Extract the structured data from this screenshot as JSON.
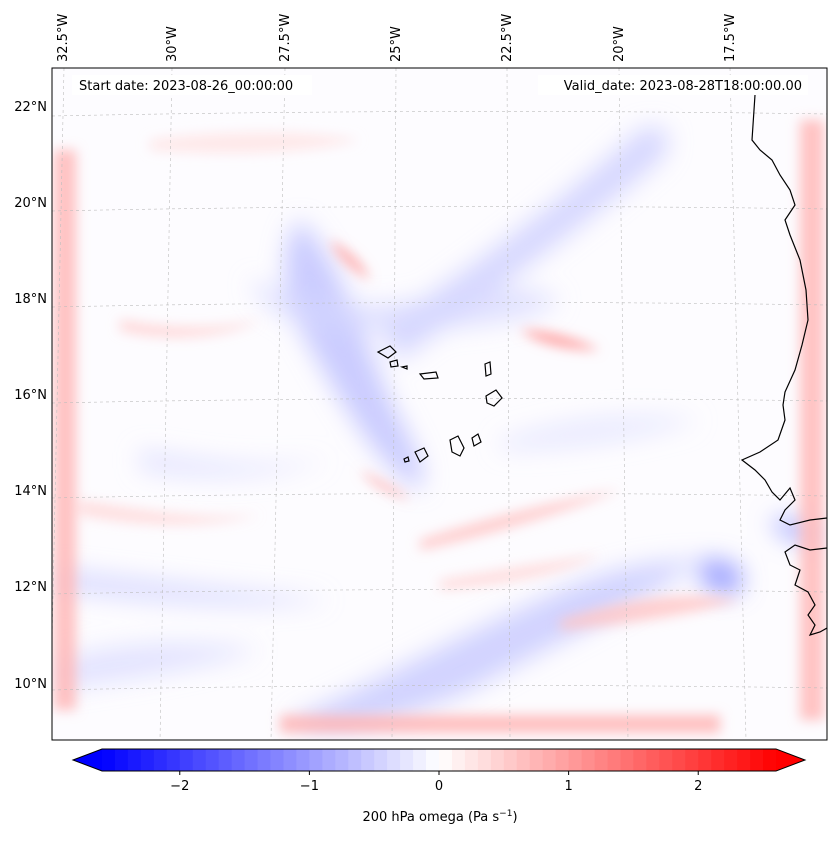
{
  "map": {
    "annotations": {
      "start_label": "Start date: 2023-08-26_00:00:00",
      "valid_label": "Valid_date: 2023-08-28T18:00:00.00"
    },
    "lon_ticks": [
      "32.5°W",
      "30°W",
      "27.5°W",
      "25°W",
      "22.5°W",
      "20°W",
      "17.5°W"
    ],
    "lat_ticks": [
      "22°N",
      "20°N",
      "18°N",
      "16°N",
      "14°N",
      "12°N",
      "10°N"
    ],
    "region": "Eastern tropical Atlantic with Cape Verde islands and West African coast",
    "field": {
      "variable": "200 hPa omega",
      "units": "Pa s^-1",
      "negative_color": "#0000ff",
      "neutral_color": "#ffffff",
      "positive_color": "#ff0000"
    }
  },
  "colorbar": {
    "title_prefix": "200 hPa omega (Pa s",
    "title_exponent": "−1",
    "title_suffix": ")",
    "tick_labels": [
      "−2",
      "−1",
      "0",
      "1",
      "2"
    ],
    "range": [
      -2.6,
      2.6
    ],
    "extend": "both",
    "palette": "bwr"
  }
}
